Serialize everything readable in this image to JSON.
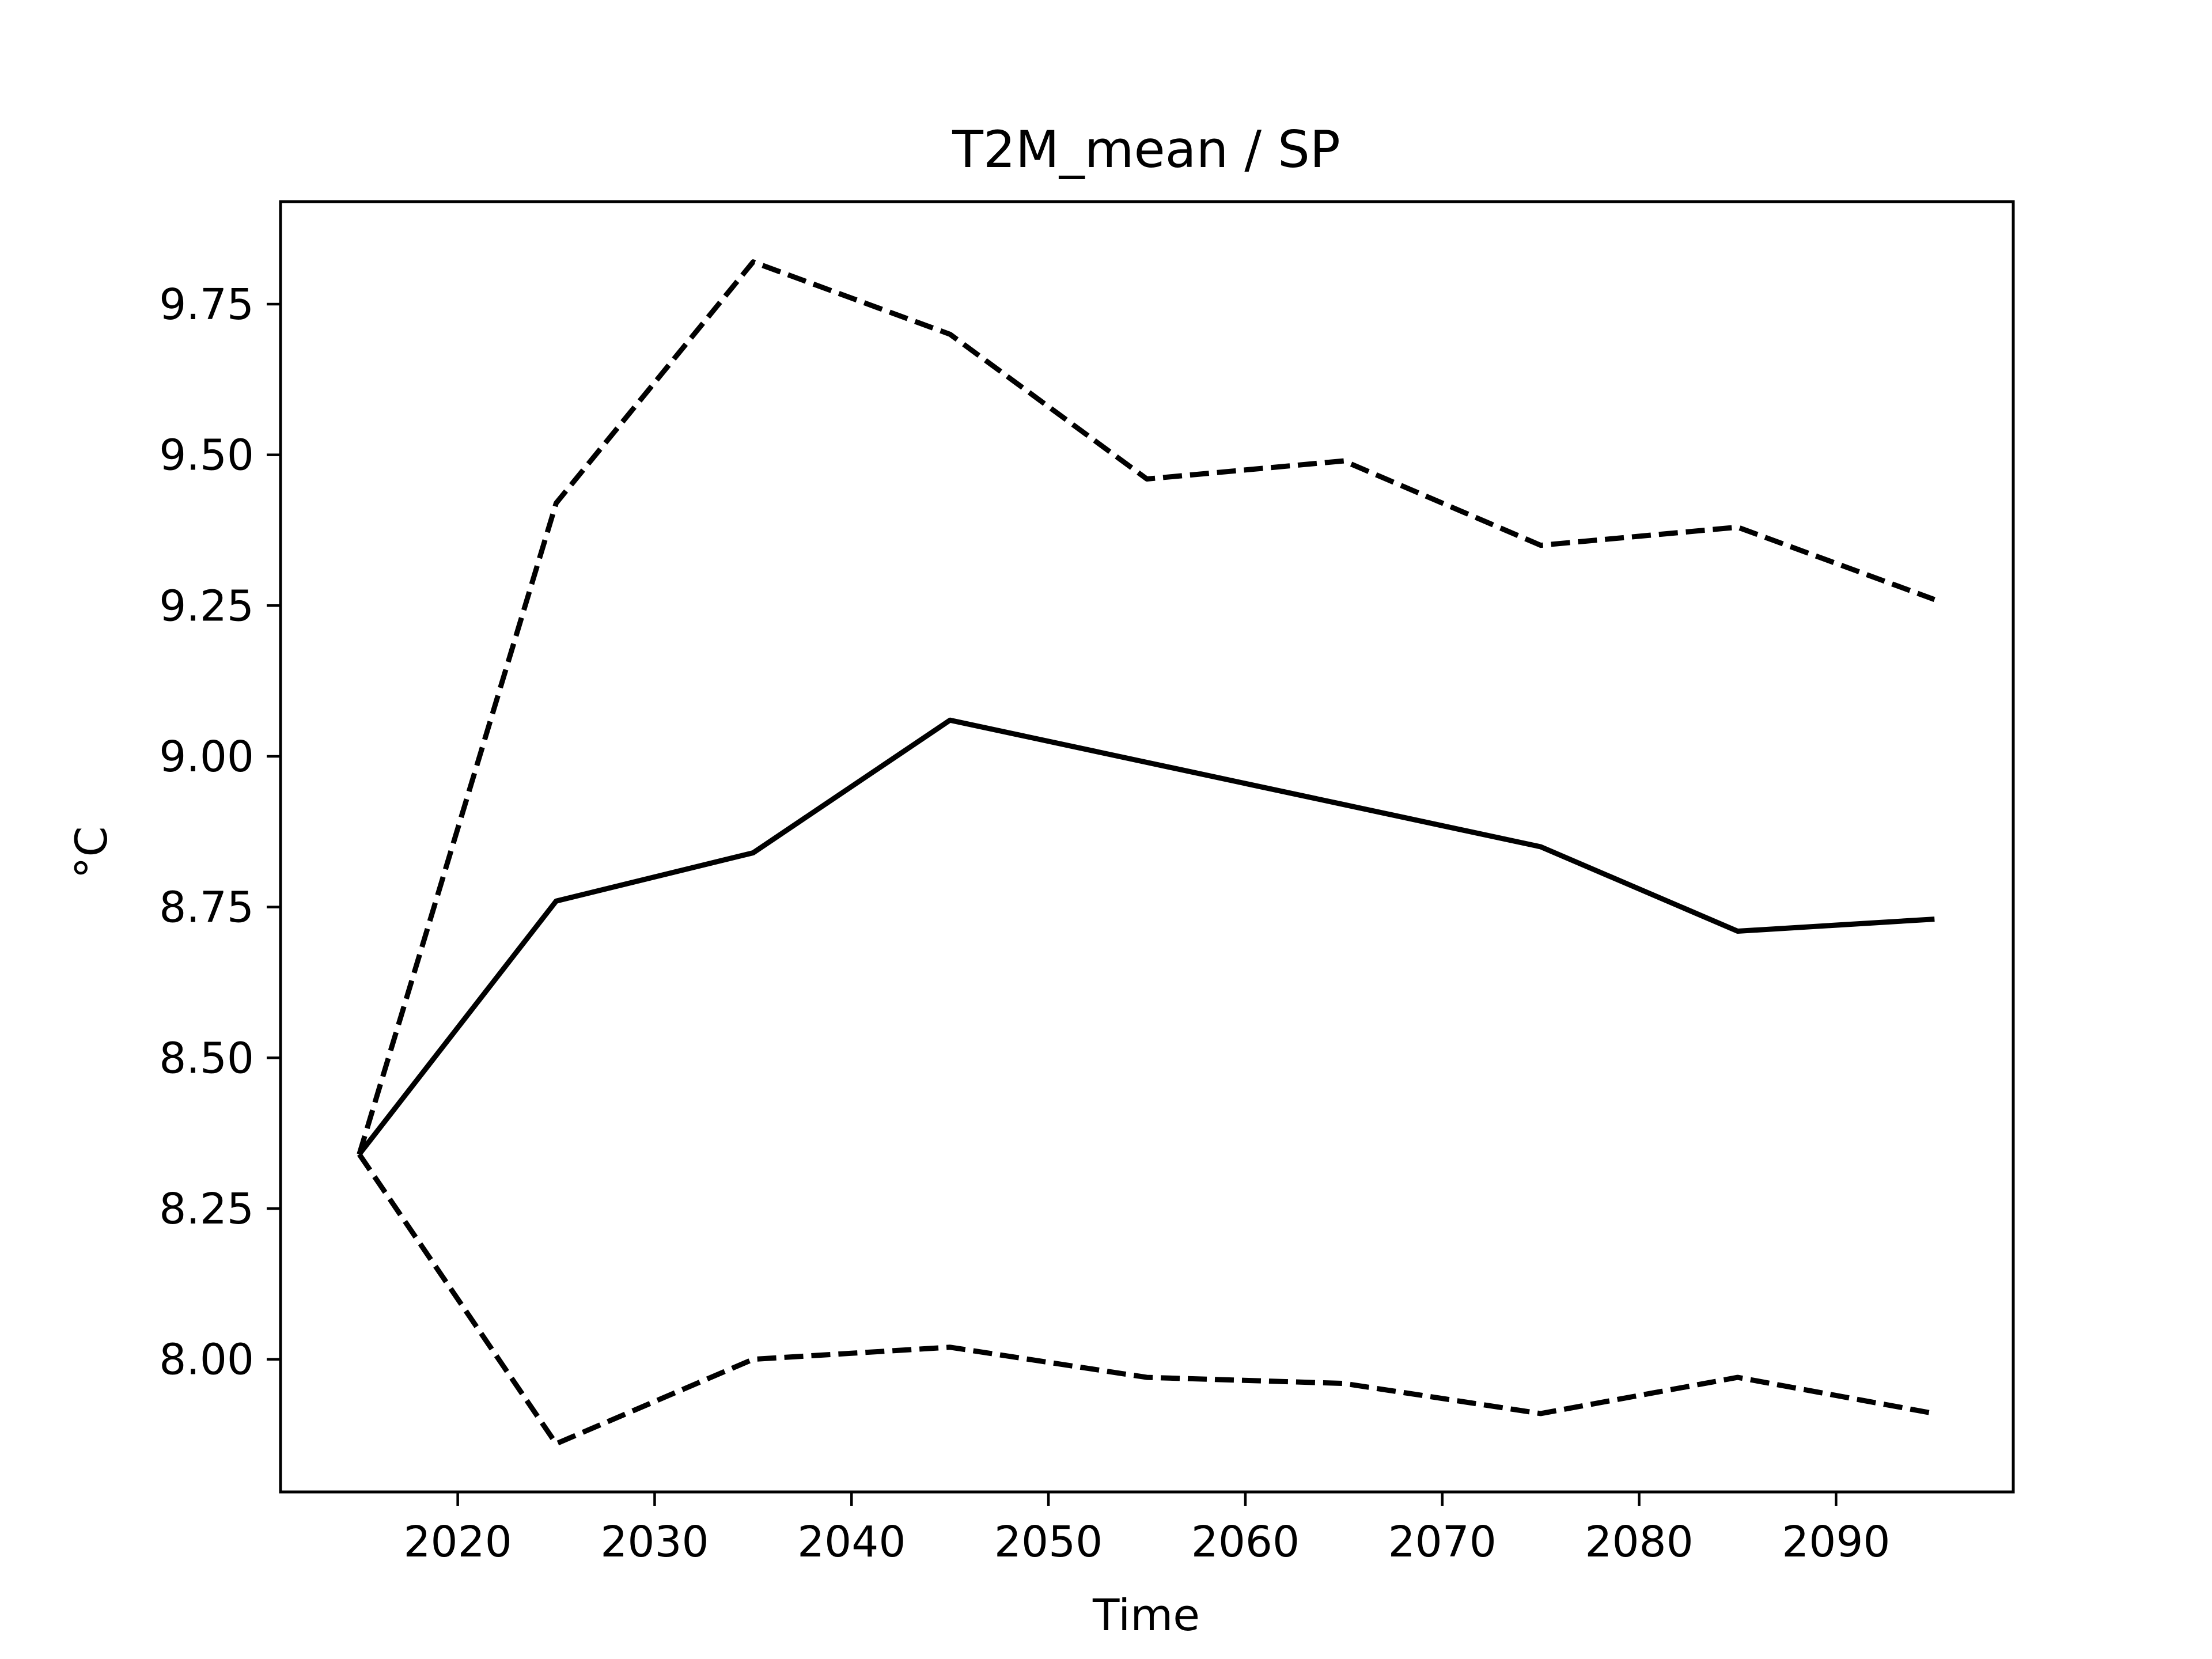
{
  "chart_data": {
    "type": "line",
    "title": "T2M_mean / SP",
    "xlabel": "Time",
    "ylabel": "°C",
    "xlim": [
      2011,
      2099
    ],
    "ylim": [
      7.78,
      9.92
    ],
    "xticks": [
      2020,
      2030,
      2040,
      2050,
      2060,
      2070,
      2080,
      2090
    ],
    "xtick_labels": [
      "2020",
      "2030",
      "2040",
      "2050",
      "2060",
      "2070",
      "2080",
      "2090"
    ],
    "yticks": [
      8.0,
      8.25,
      8.5,
      8.75,
      9.0,
      9.25,
      9.5,
      9.75
    ],
    "ytick_labels": [
      "8.00",
      "8.25",
      "8.50",
      "8.75",
      "9.00",
      "9.25",
      "9.50",
      "9.75"
    ],
    "grid": false,
    "x": [
      2015,
      2025,
      2035,
      2045,
      2055,
      2065,
      2075,
      2085,
      2095
    ],
    "series": [
      {
        "style": "dashed",
        "color": "#000000",
        "values": [
          8.34,
          9.42,
          9.82,
          9.7,
          9.46,
          9.49,
          9.35,
          9.38,
          9.26
        ]
      },
      {
        "style": "solid",
        "color": "#000000",
        "values": [
          8.34,
          8.76,
          8.84,
          9.06,
          8.99,
          8.92,
          8.85,
          8.71,
          8.73
        ]
      },
      {
        "style": "dashed",
        "color": "#000000",
        "values": [
          8.34,
          7.86,
          8.0,
          8.02,
          7.97,
          7.96,
          7.91,
          7.97,
          7.91
        ]
      }
    ]
  }
}
